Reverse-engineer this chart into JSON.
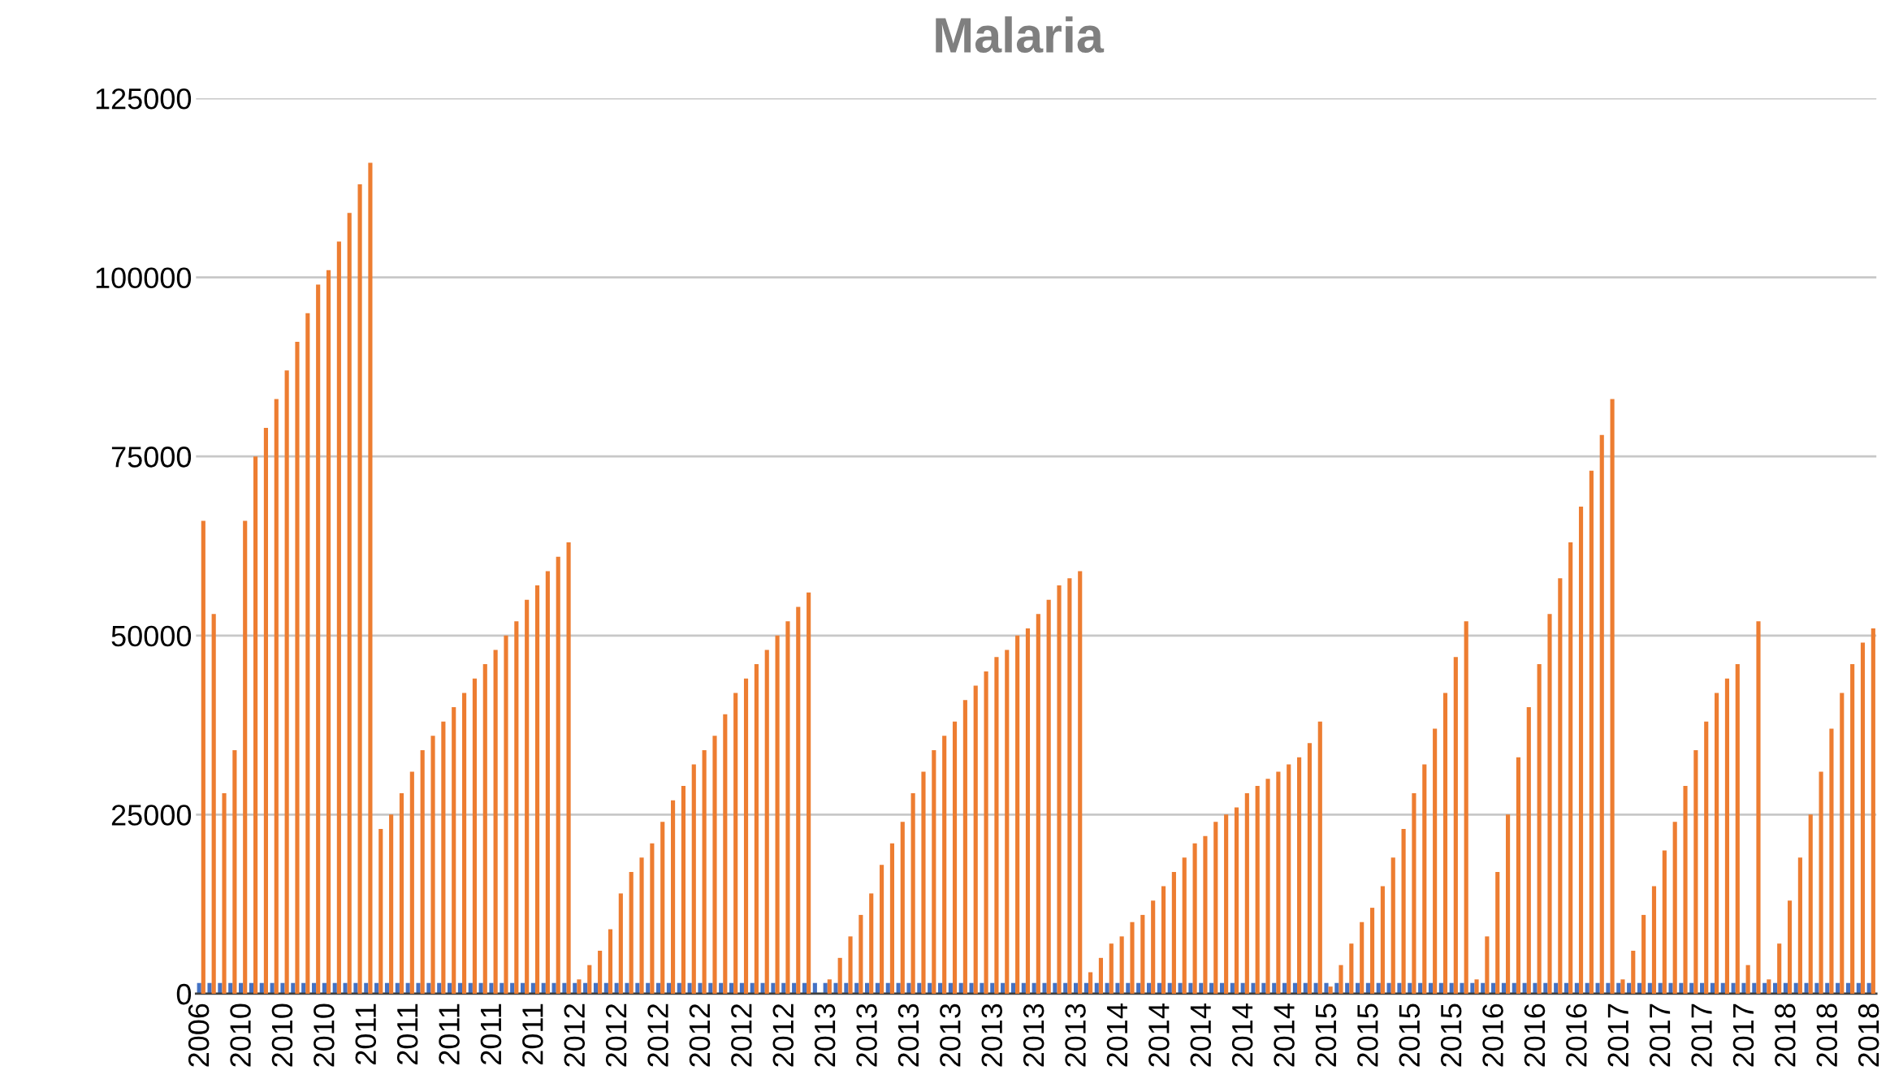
{
  "chart_data": {
    "type": "bar",
    "title": "Malaria",
    "categories": [
      "2006",
      null,
      null,
      null,
      "2010",
      null,
      null,
      null,
      "2010",
      null,
      null,
      null,
      "2010",
      null,
      null,
      null,
      "2011",
      null,
      null,
      null,
      "2011",
      null,
      null,
      null,
      "2011",
      null,
      null,
      null,
      "2011",
      null,
      null,
      null,
      "2011",
      null,
      null,
      null,
      "2012",
      null,
      null,
      null,
      "2012",
      null,
      null,
      null,
      "2012",
      null,
      null,
      null,
      "2012",
      null,
      null,
      null,
      "2012",
      null,
      null,
      null,
      "2012",
      null,
      null,
      null,
      "2013",
      null,
      null,
      null,
      "2013",
      null,
      null,
      null,
      "2013",
      null,
      null,
      null,
      "2013",
      null,
      null,
      null,
      "2013",
      null,
      null,
      null,
      "2013",
      null,
      null,
      null,
      "2013",
      null,
      null,
      null,
      "2014",
      null,
      null,
      null,
      "2014",
      null,
      null,
      null,
      "2014",
      null,
      null,
      null,
      "2014",
      null,
      null,
      null,
      "2014",
      null,
      null,
      null,
      "2015",
      null,
      null,
      null,
      "2015",
      null,
      null,
      null,
      "2015",
      null,
      null,
      null,
      "2015",
      null,
      null,
      null,
      "2016",
      null,
      null,
      null,
      "2016",
      null,
      null,
      null,
      "2016",
      null,
      null,
      null,
      "2017",
      null,
      null,
      null,
      "2017",
      null,
      null,
      null,
      "2017",
      null,
      null,
      null,
      "2017",
      null,
      null,
      null,
      "2018",
      null,
      null,
      null,
      "2018",
      null,
      null,
      null,
      "2018"
    ],
    "series": [
      {
        "color": "#4472c4",
        "values": [
          1500,
          1500,
          1500,
          1500,
          1500,
          1500,
          1500,
          1500,
          1500,
          1500,
          1500,
          1500,
          1500,
          1500,
          1500,
          1500,
          1500,
          1500,
          1500,
          1500,
          1500,
          1500,
          1500,
          1500,
          1500,
          1500,
          1500,
          1500,
          1500,
          1500,
          1500,
          1500,
          1500,
          1500,
          1500,
          1500,
          1500,
          1500,
          1500,
          1500,
          1500,
          1500,
          1500,
          1500,
          1500,
          1500,
          1500,
          1500,
          1500,
          1500,
          1500,
          1500,
          1500,
          1500,
          1500,
          1500,
          1500,
          1500,
          1500,
          1500,
          1500,
          1500,
          1500,
          1500,
          1500,
          1500,
          1500,
          1500,
          1500,
          1500,
          1500,
          1500,
          1500,
          1500,
          1500,
          1500,
          1500,
          1500,
          1500,
          1500,
          1500,
          1500,
          1500,
          1500,
          1500,
          1500,
          1500,
          1500,
          1500,
          1500,
          1500,
          1500,
          1500,
          1500,
          1500,
          1500,
          1500,
          1500,
          1500,
          1500,
          1500,
          1500,
          1500,
          1500,
          1500,
          1500,
          1500,
          1500,
          1500,
          1500,
          1500,
          1500,
          1500,
          1500,
          1500,
          1500,
          1500,
          1500,
          1500,
          1500,
          1500,
          1500,
          1500,
          1500,
          1500,
          1500,
          1500,
          1500,
          1500,
          1500,
          1500,
          1500,
          1500,
          1500,
          1500,
          1500,
          1500,
          1500,
          1500,
          1500,
          1500,
          1500,
          1500,
          1500,
          1500,
          1500,
          1500,
          1500,
          1500,
          1500,
          1500,
          1500,
          1500,
          1500,
          1500,
          1500,
          1500,
          1500,
          1500,
          1500,
          1500
        ]
      },
      {
        "color": "#ed7d31",
        "values": [
          66000,
          53000,
          28000,
          34000,
          66000,
          75000,
          79000,
          83000,
          87000,
          91000,
          95000,
          99000,
          101000,
          105000,
          109000,
          113000,
          116000,
          23000,
          25000,
          28000,
          31000,
          34000,
          36000,
          38000,
          40000,
          42000,
          44000,
          46000,
          48000,
          50000,
          52000,
          55000,
          57000,
          59000,
          61000,
          63000,
          2000,
          4000,
          6000,
          9000,
          14000,
          17000,
          19000,
          21000,
          24000,
          27000,
          29000,
          32000,
          34000,
          36000,
          39000,
          42000,
          44000,
          46000,
          48000,
          50000,
          52000,
          54000,
          56000,
          null,
          2000,
          5000,
          8000,
          11000,
          14000,
          18000,
          21000,
          24000,
          28000,
          31000,
          34000,
          36000,
          38000,
          41000,
          43000,
          45000,
          47000,
          48000,
          50000,
          51000,
          53000,
          55000,
          57000,
          58000,
          59000,
          3000,
          5000,
          7000,
          8000,
          10000,
          11000,
          13000,
          15000,
          17000,
          19000,
          21000,
          22000,
          24000,
          25000,
          26000,
          28000,
          29000,
          30000,
          31000,
          32000,
          33000,
          35000,
          38000,
          1000,
          4000,
          7000,
          10000,
          12000,
          15000,
          19000,
          23000,
          28000,
          32000,
          37000,
          42000,
          47000,
          52000,
          2000,
          8000,
          17000,
          25000,
          33000,
          40000,
          46000,
          53000,
          58000,
          63000,
          68000,
          73000,
          78000,
          83000,
          2000,
          6000,
          11000,
          15000,
          20000,
          24000,
          29000,
          34000,
          38000,
          42000,
          44000,
          46000,
          4000,
          52000,
          2000,
          7000,
          13000,
          19000,
          25000,
          31000,
          37000,
          42000,
          46000,
          49000,
          51000
        ]
      }
    ],
    "ylim": [
      0,
      125000
    ],
    "yticks": [
      0,
      25000,
      50000,
      75000,
      100000,
      125000
    ],
    "grid": "y",
    "legend": false
  }
}
